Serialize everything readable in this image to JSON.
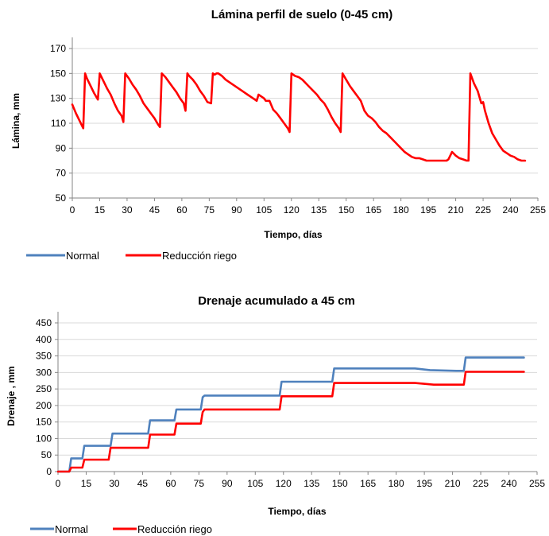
{
  "colors": {
    "normal": "#4F81BD",
    "reduccion": "#FF0000",
    "grid": "#D9D9D9",
    "axis": "#868686"
  },
  "chart_data": [
    {
      "type": "line",
      "title": "Lámina perfil de suelo (0-45 cm)",
      "xlabel": "Tiempo, días",
      "ylabel": "Lámina, mm",
      "xlim": [
        0,
        255
      ],
      "ylim": [
        50,
        170
      ],
      "xticks": [
        "0",
        "15",
        "30",
        "45",
        "60",
        "75",
        "90",
        "105",
        "120",
        "135",
        "150",
        "165",
        "180",
        "195",
        "210",
        "225",
        "240",
        "255"
      ],
      "yticks": [
        "50",
        "70",
        "90",
        "110",
        "130",
        "150",
        "170"
      ],
      "grid": true,
      "legend": "bottom-left",
      "legend_entries": [
        "Normal",
        "Reducción riego"
      ],
      "series": [
        {
          "name": "Reducción riego",
          "color": "#FF0000",
          "x": [
            0,
            2,
            4,
            6,
            7,
            8,
            10,
            12,
            14,
            15,
            17,
            19,
            21,
            23,
            25,
            27,
            28,
            29,
            31,
            33,
            35,
            37,
            39,
            41,
            43,
            45,
            47,
            48,
            49,
            51,
            53,
            55,
            57,
            59,
            61,
            62,
            63,
            64,
            66,
            68,
            70,
            72,
            74,
            76,
            77,
            78,
            79,
            80,
            82,
            84,
            86,
            88,
            90,
            92,
            94,
            96,
            98,
            100,
            101,
            102,
            104,
            105,
            106,
            108,
            110,
            112,
            114,
            116,
            118,
            119,
            120,
            122,
            124,
            126,
            128,
            130,
            132,
            134,
            136,
            138,
            140,
            142,
            144,
            146,
            147,
            148,
            150,
            152,
            154,
            156,
            158,
            160,
            162,
            164,
            166,
            168,
            170,
            172,
            174,
            176,
            178,
            180,
            182,
            184,
            186,
            188,
            190,
            192,
            194,
            196,
            198,
            200,
            202,
            204,
            205,
            206,
            208,
            210,
            212,
            214,
            216,
            217,
            218,
            220,
            222,
            224,
            225,
            226,
            228,
            230,
            232,
            234,
            236,
            238,
            240,
            242,
            244,
            246,
            248
          ],
          "y": [
            125,
            118,
            112,
            106,
            150,
            146,
            140,
            134,
            129,
            150,
            144,
            138,
            133,
            126,
            120,
            116,
            111,
            150,
            146,
            141,
            137,
            132,
            126,
            122,
            118,
            114,
            109,
            107,
            150,
            147,
            143,
            139,
            135,
            130,
            126,
            120,
            150,
            148,
            145,
            141,
            136,
            132,
            127,
            126,
            150,
            149,
            150,
            150,
            148,
            145,
            143,
            141,
            139,
            137,
            135,
            133,
            131,
            129,
            128,
            133,
            131,
            130,
            128,
            128,
            121,
            118,
            114,
            110,
            106,
            103,
            150,
            148,
            147,
            145,
            142,
            139,
            136,
            133,
            129,
            126,
            121,
            115,
            110,
            106,
            103,
            150,
            145,
            140,
            136,
            132,
            128,
            120,
            116,
            114,
            111,
            107,
            104,
            102,
            99,
            96,
            93,
            90,
            87,
            85,
            83,
            82,
            82,
            81,
            80,
            80,
            80,
            80,
            80,
            80,
            80,
            81,
            87,
            84,
            82,
            81,
            80,
            80,
            150,
            142,
            136,
            126,
            127,
            120,
            110,
            102,
            97,
            92,
            88,
            86,
            84,
            83,
            81,
            80,
            80
          ]
        },
        {
          "name": "Normal",
          "color": "#4F81BD",
          "x": [],
          "y": []
        }
      ]
    },
    {
      "type": "line",
      "title": "Drenaje acumulado a 45 cm",
      "xlabel": "Tiempo, días",
      "ylabel": "Drenaje , mm",
      "xlim": [
        0,
        255
      ],
      "ylim": [
        0,
        450
      ],
      "xticks": [
        "0",
        "15",
        "30",
        "45",
        "60",
        "75",
        "90",
        "105",
        "120",
        "135",
        "150",
        "165",
        "180",
        "195",
        "210",
        "225",
        "240",
        "255"
      ],
      "yticks": [
        "0",
        "50",
        "100",
        "150",
        "200",
        "250",
        "300",
        "350",
        "400",
        "450"
      ],
      "grid": true,
      "legend": "bottom-left",
      "legend_entries": [
        "Normal",
        "Reducción riego"
      ],
      "series": [
        {
          "name": "Normal",
          "color": "#4F81BD",
          "x": [
            0,
            6,
            7,
            13,
            14,
            28,
            29,
            48,
            49,
            62,
            63,
            76,
            77,
            78,
            118,
            119,
            146,
            147,
            190,
            198,
            212,
            216,
            217,
            248
          ],
          "y": [
            0,
            0,
            40,
            40,
            78,
            78,
            115,
            115,
            155,
            155,
            188,
            188,
            225,
            230,
            230,
            272,
            272,
            312,
            312,
            307,
            305,
            305,
            345,
            345
          ]
        },
        {
          "name": "Reducción riego",
          "color": "#FF0000",
          "x": [
            0,
            6,
            7,
            13,
            14,
            27,
            28,
            48,
            49,
            62,
            63,
            76,
            77,
            78,
            118,
            119,
            146,
            147,
            190,
            200,
            212,
            216,
            217,
            248
          ],
          "y": [
            0,
            0,
            12,
            12,
            36,
            36,
            72,
            72,
            112,
            112,
            145,
            145,
            180,
            188,
            188,
            228,
            228,
            268,
            268,
            263,
            263,
            263,
            302,
            302
          ]
        }
      ]
    }
  ]
}
